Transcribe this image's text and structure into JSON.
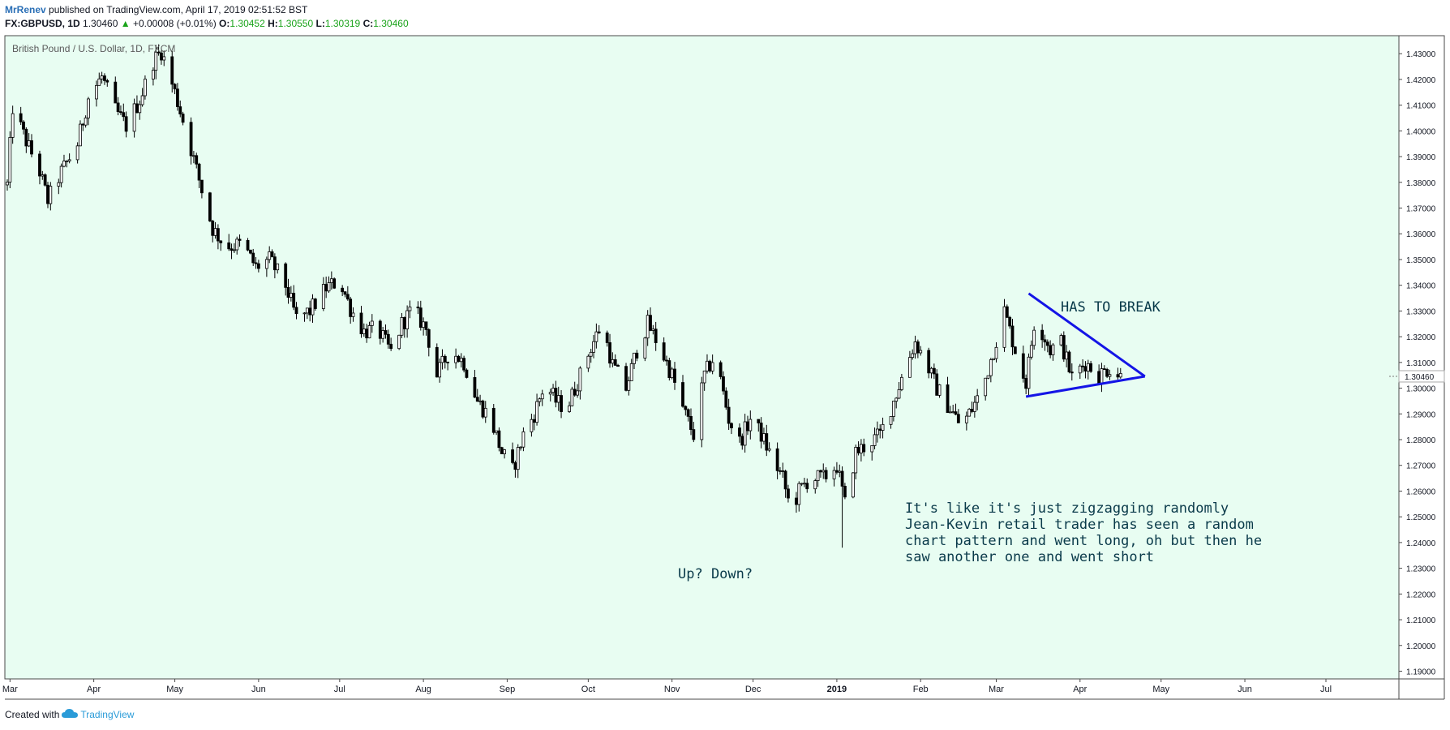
{
  "header": {
    "author": "MrRenev",
    "published": " published on TradingView.com, April 17, 2019 02:51:52 BST",
    "symbol": "FX:GBPUSD, 1D",
    "last": " 1.30460 ",
    "change_arrow": "▲",
    "change": " +0.00008 (+0.01%) ",
    "o_label": "O:",
    "o_val": "1.30452",
    "h_label": " H:",
    "h_val": "1.30550",
    "l_label": " L:",
    "l_val": "1.30319",
    "c_label": " C:",
    "c_val": "1.30460"
  },
  "footer": {
    "created": "Created with",
    "brand": "TradingView"
  },
  "colors": {
    "background": "#e8fdf2",
    "candle": "#000000",
    "trendline": "#1414e6",
    "text_note": "#0a3a4a",
    "price_tag": "#ffffff"
  },
  "chart_data": {
    "type": "candlestick",
    "title": "British Pound / U.S. Dollar, 1D, FXCM",
    "yaxis_ticks": [
      "1.43000",
      "1.42000",
      "1.41000",
      "1.40000",
      "1.39000",
      "1.38000",
      "1.37000",
      "1.36000",
      "1.35000",
      "1.34000",
      "1.33000",
      "1.32000",
      "1.31000",
      "1.30000",
      "1.29000",
      "1.28000",
      "1.27000",
      "1.26000",
      "1.25000",
      "1.24000",
      "1.23000",
      "1.22000",
      "1.21000",
      "1.20000",
      "1.19000"
    ],
    "xaxis_ticks": [
      "Mar",
      "Apr",
      "May",
      "Jun",
      "Jul",
      "Aug",
      "Sep",
      "Oct",
      "Nov",
      "Dec",
      "2019",
      "Feb",
      "Mar",
      "Apr",
      "May",
      "Jun",
      "Jul"
    ],
    "ylim": [
      1.187,
      1.437
    ],
    "last_price_label": "1.30460",
    "close_path": [
      [
        "2018-02-28",
        1.379
      ],
      [
        "2018-03-02",
        1.409
      ],
      [
        "2018-03-07",
        1.396
      ],
      [
        "2018-03-12",
        1.384
      ],
      [
        "2018-03-15",
        1.373
      ],
      [
        "2018-03-20",
        1.384
      ],
      [
        "2018-03-26",
        1.395
      ],
      [
        "2018-03-30",
        1.413
      ],
      [
        "2018-04-04",
        1.421
      ],
      [
        "2018-04-09",
        1.408
      ],
      [
        "2018-04-13",
        1.402
      ],
      [
        "2018-04-18",
        1.412
      ],
      [
        "2018-04-23",
        1.427
      ],
      [
        "2018-04-26",
        1.431
      ],
      [
        "2018-05-01",
        1.415
      ],
      [
        "2018-05-06",
        1.397
      ],
      [
        "2018-05-11",
        1.377
      ],
      [
        "2018-05-15",
        1.362
      ],
      [
        "2018-05-20",
        1.355
      ],
      [
        "2018-05-26",
        1.356
      ],
      [
        "2018-05-31",
        1.347
      ],
      [
        "2018-06-05",
        1.35
      ],
      [
        "2018-06-11",
        1.34
      ],
      [
        "2018-06-15",
        1.327
      ],
      [
        "2018-06-20",
        1.33
      ],
      [
        "2018-06-26",
        1.339
      ],
      [
        "2018-07-01",
        1.342
      ],
      [
        "2018-07-05",
        1.331
      ],
      [
        "2018-07-10",
        1.322
      ],
      [
        "2018-07-15",
        1.323
      ],
      [
        "2018-07-20",
        1.314
      ],
      [
        "2018-07-24",
        1.325
      ],
      [
        "2018-07-28",
        1.331
      ],
      [
        "2018-08-02",
        1.323
      ],
      [
        "2018-08-06",
        1.305
      ],
      [
        "2018-08-11",
        1.315
      ],
      [
        "2018-08-16",
        1.31
      ],
      [
        "2018-08-21",
        1.295
      ],
      [
        "2018-08-26",
        1.288
      ],
      [
        "2018-08-30",
        1.275
      ],
      [
        "2018-09-03",
        1.268
      ],
      [
        "2018-09-07",
        1.282
      ],
      [
        "2018-09-11",
        1.29
      ],
      [
        "2018-09-15",
        1.302
      ],
      [
        "2018-09-19",
        1.295
      ],
      [
        "2018-09-23",
        1.292
      ],
      [
        "2018-09-28",
        1.305
      ],
      [
        "2018-10-02",
        1.316
      ],
      [
        "2018-10-06",
        1.325
      ],
      [
        "2018-10-10",
        1.309
      ],
      [
        "2018-10-15",
        1.3
      ],
      [
        "2018-10-19",
        1.315
      ],
      [
        "2018-10-23",
        1.325
      ],
      [
        "2018-10-27",
        1.317
      ],
      [
        "2018-11-01",
        1.305
      ],
      [
        "2018-11-05",
        1.292
      ],
      [
        "2018-11-09",
        1.282
      ],
      [
        "2018-11-13",
        1.305
      ],
      [
        "2018-11-17",
        1.313
      ],
      [
        "2018-11-22",
        1.288
      ],
      [
        "2018-11-26",
        1.279
      ],
      [
        "2018-11-30",
        1.288
      ],
      [
        "2018-12-04",
        1.282
      ],
      [
        "2018-12-07",
        1.275
      ],
      [
        "2018-12-12",
        1.265
      ],
      [
        "2018-12-15",
        1.252
      ],
      [
        "2018-12-18",
        1.26
      ],
      [
        "2018-12-22",
        1.265
      ],
      [
        "2018-12-27",
        1.265
      ],
      [
        "2019-01-01",
        1.27
      ],
      [
        "2019-01-04",
        1.255
      ],
      [
        "2019-01-08",
        1.275
      ],
      [
        "2019-01-12",
        1.278
      ],
      [
        "2019-01-17",
        1.282
      ],
      [
        "2019-01-22",
        1.295
      ],
      [
        "2019-01-27",
        1.31
      ],
      [
        "2019-01-30",
        1.318
      ],
      [
        "2019-02-03",
        1.31
      ],
      [
        "2019-02-07",
        1.3
      ],
      [
        "2019-02-12",
        1.292
      ],
      [
        "2019-02-16",
        1.285
      ],
      [
        "2019-02-20",
        1.292
      ],
      [
        "2019-02-24",
        1.3
      ],
      [
        "2019-02-28",
        1.315
      ],
      [
        "2019-03-04",
        1.33
      ],
      [
        "2019-03-08",
        1.315
      ],
      [
        "2019-03-12",
        1.302
      ],
      [
        "2019-03-15",
        1.325
      ],
      [
        "2019-03-18",
        1.322
      ],
      [
        "2019-03-21",
        1.315
      ],
      [
        "2019-03-25",
        1.318
      ],
      [
        "2019-03-29",
        1.304
      ],
      [
        "2019-04-03",
        1.31
      ],
      [
        "2019-04-08",
        1.305
      ],
      [
        "2019-04-12",
        1.308
      ],
      [
        "2019-04-16",
        1.3046
      ]
    ]
  },
  "annotations": {
    "has_to_break": "HAS TO BREAK",
    "up_down": "Up? Down?",
    "note_lines": [
      "It's like it's just zigzagging randomly",
      "Jean-Kevin retail trader has seen a random",
      "chart pattern and went long, oh but then he",
      "saw another one and went short"
    ]
  },
  "triangle": {
    "upper": [
      [
        "2019-03-13",
        1.3368
      ],
      [
        "2019-04-25",
        1.3046
      ]
    ],
    "lower": [
      [
        "2019-03-12",
        1.2967
      ],
      [
        "2019-04-25",
        1.3046
      ]
    ]
  }
}
